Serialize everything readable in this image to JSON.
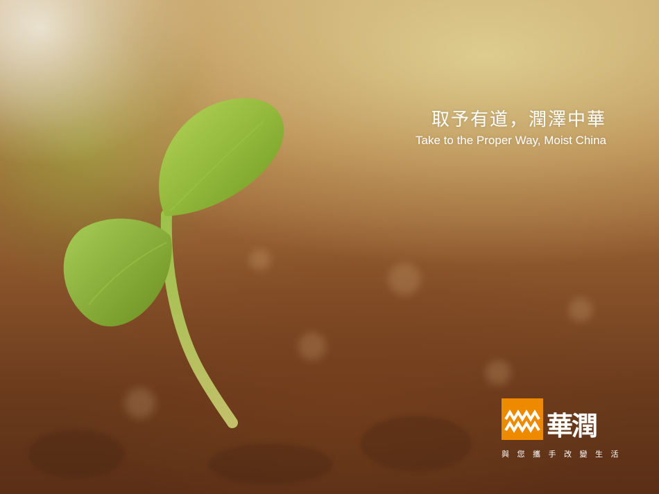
{
  "slogan": {
    "chinese": "取予有道，潤澤中華",
    "english": "Take to the Proper Way, Moist China"
  },
  "brand": {
    "name": "華潤",
    "tagline": "與 您 攜 手   改 變 生 活",
    "accent_color": "#ee8a00"
  }
}
